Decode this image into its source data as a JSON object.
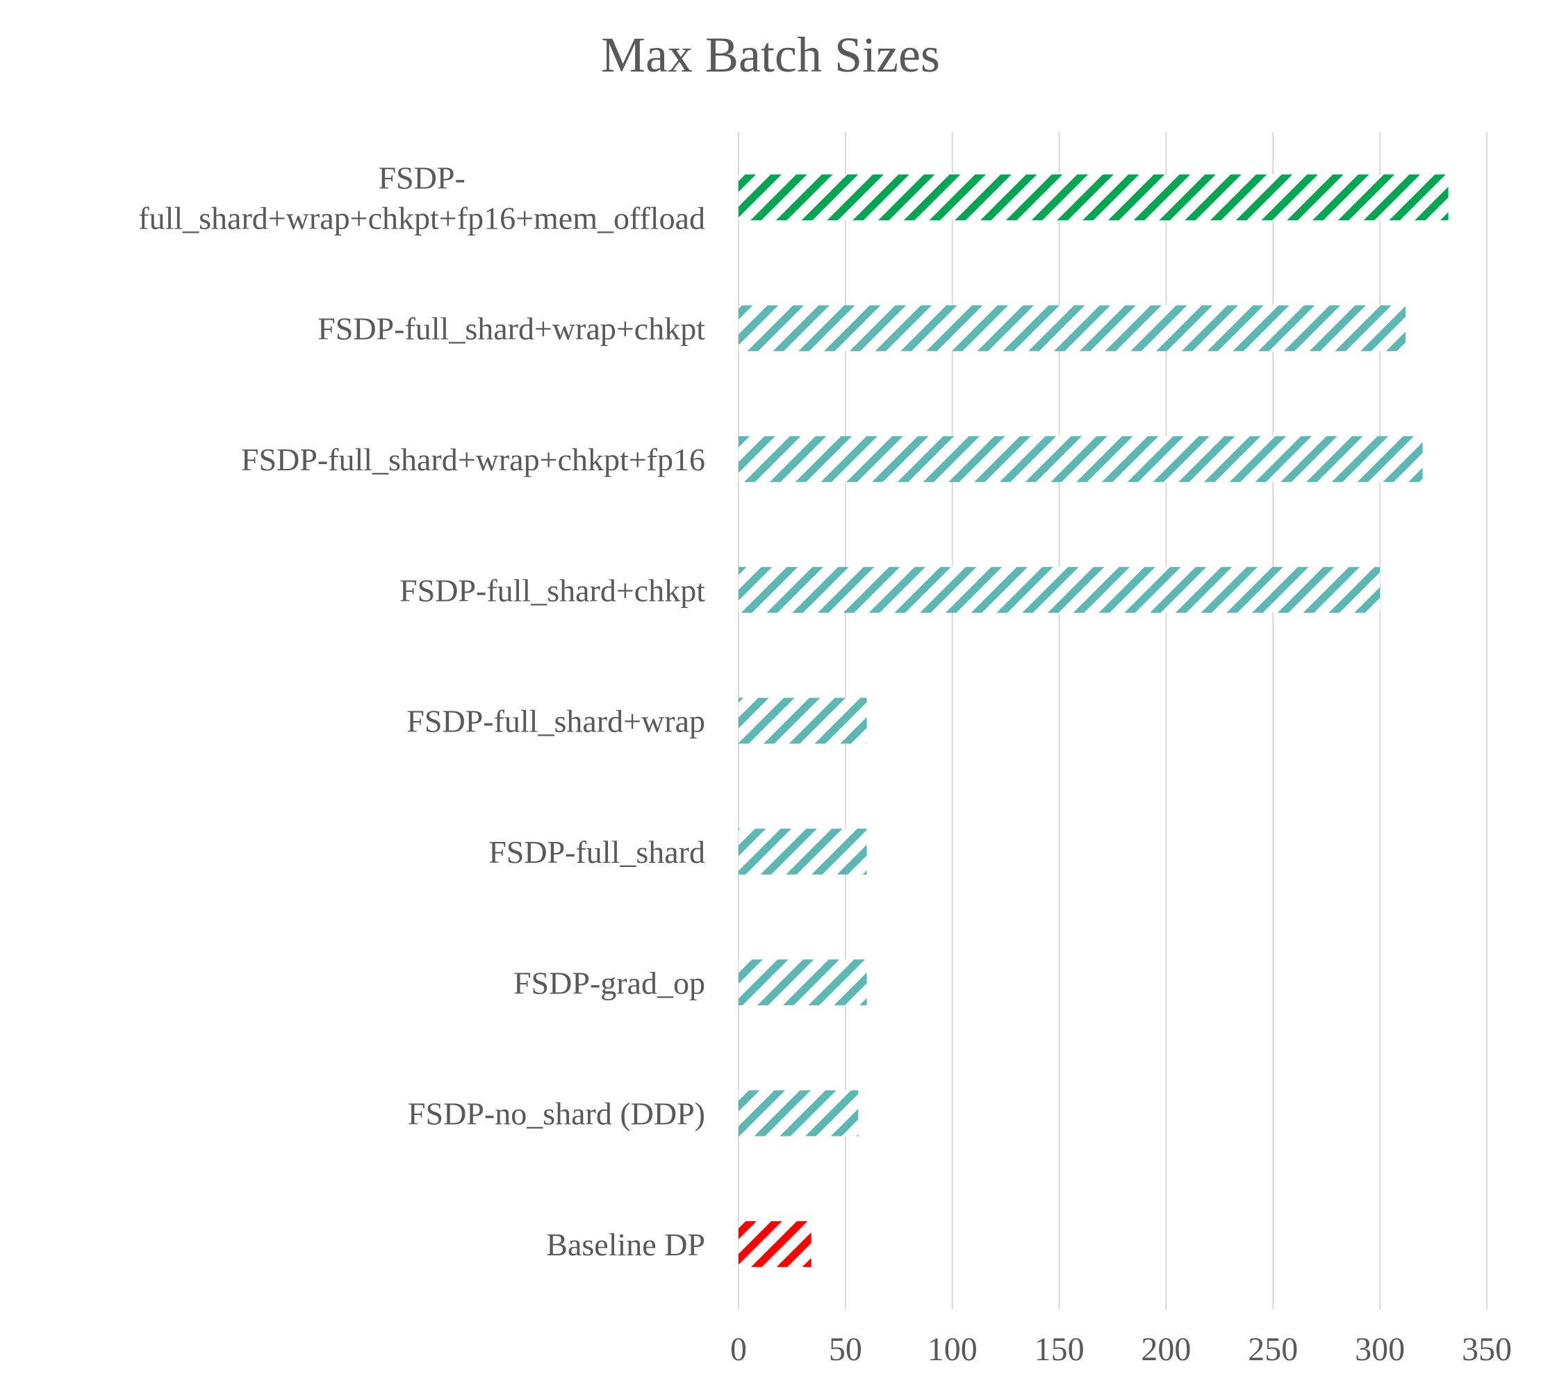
{
  "chart_data": {
    "type": "bar",
    "orientation": "horizontal",
    "title": "Max Batch Sizes",
    "xlabel": "",
    "ylabel": "",
    "xlim": [
      0,
      350
    ],
    "xticks": [
      "0",
      "50",
      "100",
      "150",
      "200",
      "250",
      "300",
      "350"
    ],
    "grid": "vertical",
    "legend": "none",
    "categories": [
      [
        "FSDP-",
        "full_shard+wrap+chkpt+fp16+mem_offload"
      ],
      [
        "FSDP-full_shard+wrap+chkpt"
      ],
      [
        "FSDP-full_shard+wrap+chkpt+fp16"
      ],
      [
        "FSDP-full_shard+chkpt"
      ],
      [
        "FSDP-full_shard+wrap"
      ],
      [
        "FSDP-full_shard"
      ],
      [
        "FSDP-grad_op"
      ],
      [
        "FSDP-no_shard (DDP)"
      ],
      [
        "Baseline DP"
      ]
    ],
    "values": [
      332,
      312,
      320,
      300,
      60,
      60,
      60,
      56,
      34
    ],
    "bar_colors": [
      "#00a651",
      "#5cb8b2",
      "#5cb8b2",
      "#5cb8b2",
      "#5cb8b2",
      "#5cb8b2",
      "#5cb8b2",
      "#5cb8b2",
      "#ff0000"
    ],
    "pattern": "diagonal-stripes"
  }
}
